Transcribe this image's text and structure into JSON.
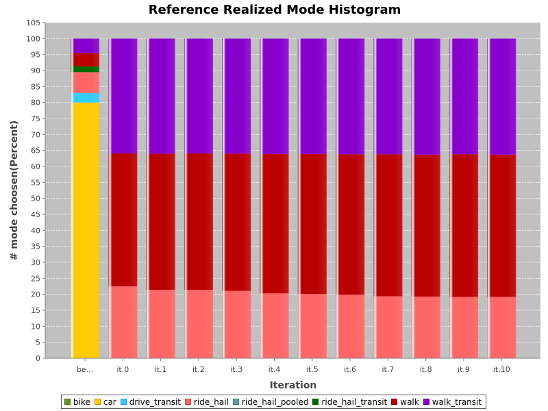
{
  "chart_data": {
    "type": "bar",
    "stacked": true,
    "title": "Reference Realized Mode Histogram",
    "xlabel": "Iteration",
    "ylabel": "# mode choosen(Percent)",
    "ylim": [
      0,
      105
    ],
    "ytick_step": 5,
    "grid": true,
    "legend_position": "bottom",
    "categories": [
      "be...",
      "it.0",
      "it.1",
      "it.2",
      "it.3",
      "it.4",
      "it.5",
      "it.6",
      "it.7",
      "it.8",
      "it.9",
      "it.10"
    ],
    "series": [
      {
        "name": "bike",
        "color": "#6b8e23",
        "values": [
          0,
          0,
          0,
          0,
          0,
          0,
          0,
          0,
          0,
          0,
          0,
          0
        ]
      },
      {
        "name": "car",
        "color": "#ffcc00",
        "values": [
          80.0,
          0,
          0,
          0,
          0,
          0,
          0,
          0,
          0,
          0,
          0,
          0
        ]
      },
      {
        "name": "drive_transit",
        "color": "#33ccff",
        "values": [
          3.0,
          0,
          0,
          0,
          0,
          0,
          0,
          0,
          0,
          0,
          0,
          0
        ]
      },
      {
        "name": "ride_hail",
        "color": "#ff6666",
        "values": [
          6.5,
          22.5,
          21.4,
          21.4,
          21.1,
          20.3,
          20.1,
          19.9,
          19.4,
          19.3,
          19.2,
          19.2
        ]
      },
      {
        "name": "ride_hail_pooled",
        "color": "#5f9ea0",
        "values": [
          0,
          0,
          0,
          0,
          0,
          0,
          0,
          0,
          0,
          0,
          0,
          0
        ]
      },
      {
        "name": "ride_hail_transit",
        "color": "#006600",
        "values": [
          1.8,
          0,
          0,
          0,
          0,
          0,
          0,
          0,
          0,
          0,
          0,
          0
        ]
      },
      {
        "name": "walk",
        "color": "#bb0000",
        "values": [
          4.2,
          41.6,
          42.6,
          42.7,
          42.9,
          43.6,
          43.8,
          43.9,
          44.4,
          44.4,
          44.6,
          44.5
        ]
      },
      {
        "name": "walk_transit",
        "color": "#8800cc",
        "values": [
          4.5,
          35.9,
          36.0,
          35.9,
          36.0,
          36.1,
          36.1,
          36.2,
          36.2,
          36.3,
          36.2,
          36.3
        ]
      }
    ]
  }
}
